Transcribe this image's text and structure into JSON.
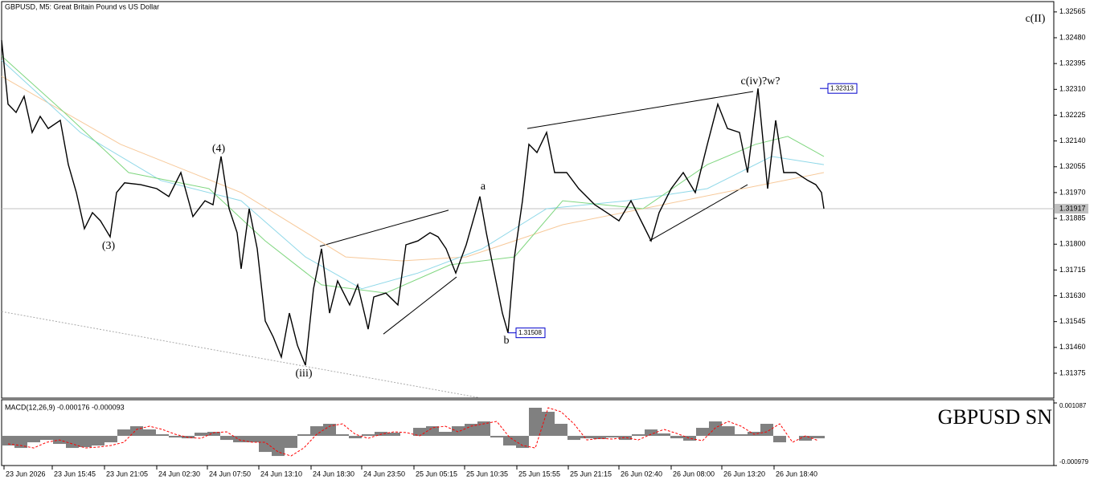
{
  "chart_data": {
    "type": "line",
    "title": "GBPUSD, M5:  Great Britain Pound vs US Dollar",
    "watermark": "GBPUSD SN",
    "xlim": [
      2,
      1311
    ],
    "ylim": [
      1.31293,
      1.32599
    ],
    "yticks": [
      1.32565,
      {
        "value": 1.3248,
        "label": "1.32480"
      },
      1.32395,
      {
        "value": 1.3231,
        "label": "1.32310"
      },
      1.32225,
      {
        "value": 1.3214,
        "label": "1.32140"
      },
      1.32055,
      {
        "value": 1.3197,
        "label": "1.31970"
      },
      1.31885,
      {
        "value": 1.318,
        "label": "1.31800"
      },
      1.31715,
      {
        "value": 1.3163,
        "label": "1.31630"
      },
      1.31545,
      {
        "value": 1.3146,
        "label": "1.31460"
      },
      1.31375
    ],
    "xticks": [
      {
        "value": 5,
        "label": "23 Jun 2026"
      },
      {
        "value": 65,
        "label": "23 Jun 15:45"
      },
      {
        "value": 130,
        "label": "23 Jun 21:05"
      },
      {
        "value": 195,
        "label": "24 Jun 02:30"
      },
      {
        "value": 258,
        "label": "24 Jun 07:50"
      },
      {
        "value": 322,
        "label": "24 Jun 13:10"
      },
      {
        "value": 387,
        "label": "24 Jun 18:30"
      },
      {
        "value": 450,
        "label": "24 Jun 23:50"
      },
      {
        "value": 515,
        "label": "25 Jun 05:15"
      },
      {
        "value": 578,
        "label": "25 Jun 10:35"
      },
      {
        "value": 643,
        "label": "25 Jun 15:55"
      },
      {
        "value": 707,
        "label": "25 Jun 21:15"
      },
      {
        "value": 770,
        "label": "26 Jun 02:40"
      },
      {
        "value": 835,
        "label": "26 Jun 08:00"
      },
      {
        "value": 898,
        "label": "26 Jun 13:20"
      },
      {
        "value": 963,
        "label": "26 Jun 18:40"
      }
    ],
    "series": [
      {
        "color": "#000000",
        "width": 1.4,
        "x": [
          2,
          10,
          20,
          30,
          40,
          50,
          60,
          75,
          85,
          95,
          105,
          115,
          125,
          137,
          145,
          155,
          175,
          195,
          210,
          225,
          240,
          255,
          265,
          275,
          285,
          295,
          300,
          310,
          320,
          330,
          340,
          350,
          360,
          370,
          380,
          390,
          400,
          410,
          420,
          435,
          445,
          458,
          465,
          480,
          495,
          505,
          520,
          535,
          545,
          555,
          567,
          580,
          590,
          597,
          605,
          615,
          625,
          632,
          640,
          650,
          658,
          668,
          680,
          690,
          705,
          720,
          740,
          755,
          770,
          785,
          800,
          810,
          820,
          835,
          850,
          865,
          880,
          893,
          905,
          920,
          930,
          943,
          955,
          965,
          975,
          990,
          1005,
          1015,
          1022,
          1025
        ],
        "values": [
          1.32472,
          1.32261,
          1.32234,
          1.32287,
          1.32168,
          1.32221,
          1.32181,
          1.32208,
          1.32062,
          1.3197,
          1.31851,
          1.31904,
          1.31877,
          1.31824,
          1.3197,
          1.32002,
          1.31996,
          1.31983,
          1.31957,
          1.32036,
          1.31891,
          1.31943,
          1.3193,
          1.32089,
          1.31917,
          1.31838,
          1.31719,
          1.31917,
          1.31785,
          1.31547,
          1.31494,
          1.31428,
          1.31573,
          1.31467,
          1.31401,
          1.31653,
          1.31785,
          1.31573,
          1.31679,
          1.316,
          1.31666,
          1.3152,
          1.31626,
          1.31639,
          1.316,
          1.31798,
          1.31811,
          1.31838,
          1.31824,
          1.31785,
          1.31705,
          1.31798,
          1.31891,
          1.31957,
          1.31838,
          1.31705,
          1.31573,
          1.31508,
          1.31758,
          1.31943,
          1.32129,
          1.32102,
          1.32168,
          1.32036,
          1.32036,
          1.31983,
          1.3193,
          1.31904,
          1.31877,
          1.31943,
          1.31864,
          1.31811,
          1.31904,
          1.31983,
          1.32036,
          1.3197,
          1.32129,
          1.32261,
          1.32181,
          1.32168,
          1.32036,
          1.32313,
          1.31983,
          1.32208,
          1.32036,
          1.32036,
          1.3201,
          1.31996,
          1.3197,
          1.31917
        ]
      },
      {
        "color": "#f7c99a",
        "width": 1,
        "x": [
          2,
          150,
          300,
          430,
          500,
          580,
          640,
          700,
          800,
          900,
          1025
        ],
        "values": [
          1.32353,
          1.32129,
          1.3197,
          1.31758,
          1.31745,
          1.31758,
          1.31811,
          1.31864,
          1.31917,
          1.3197,
          1.32036
        ]
      },
      {
        "color": "#8fd8e8",
        "width": 1,
        "x": [
          2,
          100,
          200,
          300,
          380,
          450,
          520,
          600,
          680,
          780,
          880,
          960,
          1025
        ],
        "values": [
          1.32406,
          1.32168,
          1.3201,
          1.31943,
          1.31758,
          1.31653,
          1.31705,
          1.31785,
          1.31917,
          1.31943,
          1.31983,
          1.32089,
          1.32062
        ]
      },
      {
        "color": "#7fd67f",
        "width": 1,
        "x": [
          2,
          80,
          160,
          260,
          330,
          400,
          480,
          560,
          640,
          700,
          800,
          880,
          940,
          980,
          1025
        ],
        "values": [
          1.3242,
          1.32234,
          1.32036,
          1.31983,
          1.31811,
          1.31666,
          1.31639,
          1.31732,
          1.31758,
          1.31943,
          1.31917,
          1.32062,
          1.32129,
          1.32155,
          1.32089
        ]
      }
    ],
    "trendlines": [
      {
        "x": [
          398,
          558
        ],
        "values": [
          1.31793,
          1.31912
        ],
        "color": "#000000",
        "style": "solid"
      },
      {
        "x": [
          477,
          568
        ],
        "values": [
          1.31504,
          1.31692
        ],
        "color": "#000000",
        "style": "solid"
      },
      {
        "x": [
          656,
          937
        ],
        "values": [
          1.32181,
          1.32303
        ],
        "color": "#000000",
        "style": "solid"
      },
      {
        "x": [
          808,
          930
        ],
        "values": [
          1.31811,
          1.31996
        ],
        "color": "#000000",
        "style": "solid"
      },
      {
        "x": [
          2,
          595
        ],
        "values": [
          1.31578,
          1.31295
        ],
        "color": "#aaaaaa",
        "style": "dotted"
      }
    ],
    "annotations": [
      "(3)",
      "(4)",
      "a",
      "b",
      "(iii)",
      "c(iv)?w?",
      "c(II)"
    ],
    "price_markers": [
      {
        "x": 632,
        "value": 1.31508
      },
      {
        "x": 1020,
        "value": 1.32313
      }
    ],
    "current_price": 1.31917,
    "macd": {
      "label": "MACD(12,26,9) -0.000176 -0.000093",
      "ylim": [
        -0.000979,
        0.001087
      ],
      "yticks": [
        0.001087,
        -0.000979
      ],
      "hist_color": "#808080",
      "signal_color": "#ff0000",
      "x": [
        2,
        18,
        34,
        50,
        66,
        82,
        98,
        114,
        130,
        146,
        162,
        178,
        194,
        210,
        226,
        242,
        258,
        274,
        290,
        306,
        322,
        338,
        354,
        370,
        386,
        402,
        418,
        434,
        450,
        466,
        482,
        498,
        514,
        530,
        546,
        562,
        578,
        594,
        610,
        626,
        642,
        658,
        674,
        690,
        706,
        722,
        738,
        754,
        770,
        786,
        802,
        818,
        834,
        850,
        866,
        882,
        898,
        914,
        930,
        946,
        962,
        978,
        994,
        1010
      ],
      "histogram": [
        -0.000318,
        -0.000398,
        -0.000212,
        -0.000133,
        -0.000265,
        -0.000398,
        -0.000371,
        -0.000318,
        -0.000212,
        0.000212,
        0.000318,
        0.000212,
        5.3e-05,
        -5.3e-05,
        -8e-05,
        0.000106,
        0.000133,
        -0.000133,
        -0.000212,
        -0.000212,
        -0.00053,
        -0.000663,
        -0.000398,
        5.3e-05,
        0.000318,
        0.000398,
        5.3e-05,
        -8e-05,
        5.3e-05,
        0.000133,
        0.000106,
        0,
        0.000265,
        0.000318,
        0.000133,
        0.000318,
        0.000398,
        0.000477,
        -5.3e-05,
        -0.000318,
        -0.000398,
        0.000928,
        0.000795,
        0.000398,
        -0.000133,
        -8e-05,
        -0.000106,
        -5.3e-05,
        -0.000133,
        5.3e-05,
        0.000212,
        8e-05,
        -8e-05,
        -0.000159,
        0.000265,
        0.000477,
        0.000318,
        5.3e-05,
        0.000133,
        0.000398,
        -0.000212,
        0,
        -0.000159,
        -8e-05
      ],
      "signal": [
        -0.000265,
        -0.000318,
        -0.000398,
        -0.000212,
        -0.000133,
        -0.000265,
        -0.000398,
        -0.000371,
        -0.000318,
        -0.000212,
        0.000212,
        0.000318,
        0.000212,
        5.3e-05,
        -5.3e-05,
        -8e-05,
        0.000106,
        0.000133,
        -0.000133,
        -0.000212,
        -0.000212,
        -0.00053,
        -0.000663,
        -0.000398,
        5.3e-05,
        0.000318,
        0.000398,
        5.3e-05,
        -8e-05,
        5.3e-05,
        0.000133,
        0.000106,
        0,
        0.000265,
        0.000318,
        0.000133,
        0.000318,
        0.000398,
        0.000477,
        -5.3e-05,
        -0.000318,
        -0.000398,
        0.000928,
        0.000795,
        0.000398,
        -0.000133,
        -8e-05,
        -0.000106,
        -5.3e-05,
        -0.000133,
        5.3e-05,
        0.000212,
        8e-05,
        -8e-05,
        -0.000159,
        0.000265,
        0.000477,
        0.000318,
        5.3e-05,
        0.000133,
        0.000398,
        -0.000212,
        0,
        -0.000159
      ]
    }
  }
}
